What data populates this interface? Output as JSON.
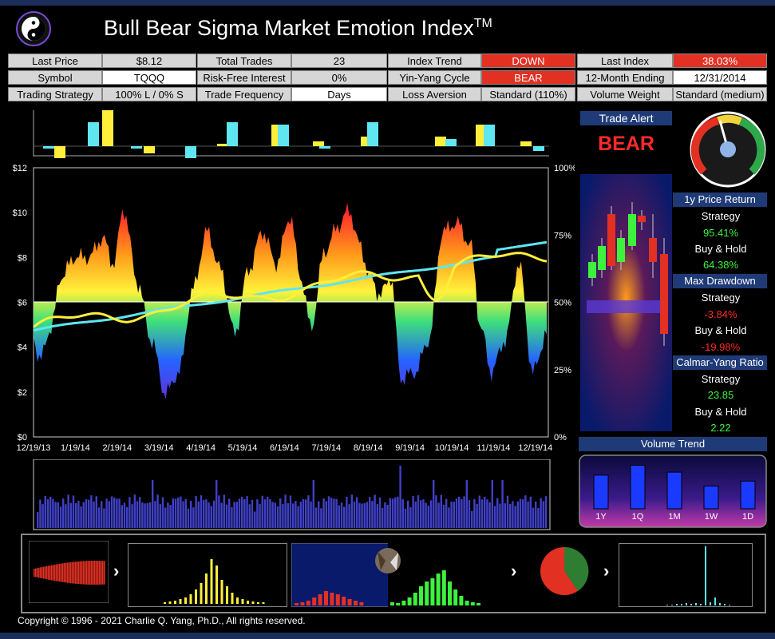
{
  "header": {
    "title": "Bull Bear Sigma Market Emotion Index",
    "trademark": "TM"
  },
  "info_table": {
    "last_price_label": "Last Price",
    "last_price": "$8.12",
    "total_trades_label": "Total Trades",
    "total_trades": "23",
    "index_trend_label": "Index Trend",
    "index_trend": "DOWN",
    "last_index_label": "Last Index",
    "last_index": "38.03%",
    "symbol_label": "Symbol",
    "symbol": "TQQQ",
    "risk_free_label": "Risk-Free Interest",
    "risk_free": "0%",
    "yin_yang_label": "Yin-Yang Cycle",
    "yin_yang": "BEAR",
    "ending_label": "12-Month Ending",
    "ending": "12/31/2014",
    "strategy_label": "Trading Strategy",
    "strategy": "100% L / 0% S",
    "frequency_label": "Trade Frequency",
    "frequency": "Days",
    "loss_aversion_label": "Loss Aversion",
    "loss_aversion": "Standard (110%)",
    "volume_weight_label": "Volume Weight",
    "volume_weight": "Standard (medium)"
  },
  "main_chart": {
    "left_ticks": [
      "$12",
      "$10",
      "$8",
      "$6",
      "$4",
      "$2",
      "$0"
    ],
    "right_ticks": [
      "100%",
      "75%",
      "50%",
      "25%",
      "0%"
    ],
    "x_ticks": [
      "12/19/13",
      "1/19/14",
      "2/19/14",
      "3/19/14",
      "4/19/14",
      "5/19/14",
      "6/19/14",
      "7/19/14",
      "8/19/14",
      "9/19/14",
      "10/19/14",
      "11/19/14",
      "12/19/14"
    ]
  },
  "side_panel": {
    "trade_alert_label": "Trade Alert",
    "trade_alert": "BEAR",
    "price_return_head": "1y Price Return",
    "strategy_label": "Strategy",
    "buyhold_label": "Buy & Hold",
    "price_return_strategy": "95.41%",
    "price_return_buyhold": "64.38%",
    "drawdown_head": "Max Drawdown",
    "drawdown_strategy": "-3.84%",
    "drawdown_buyhold": "-19.98%",
    "calmar_head": "Calmar-Yang Ratio",
    "calmar_strategy": "23.85",
    "calmar_buyhold": "2.22",
    "volume_trend_head": "Volume Trend",
    "volume_labels": [
      "1Y",
      "1Q",
      "1M",
      "1W",
      "1D"
    ],
    "volume_values": [
      0.68,
      0.88,
      0.74,
      0.46,
      0.56
    ]
  },
  "footer": {
    "copyright": "Copyright © 1996 - 2021 Charlie Q. Yang, Ph.D., All rights reserved."
  },
  "colors": {
    "navy": "#1f3b77",
    "red": "#e23022",
    "cyan": "#5fe6f0",
    "yellow": "#ffef3a",
    "green": "#3df23d"
  }
}
